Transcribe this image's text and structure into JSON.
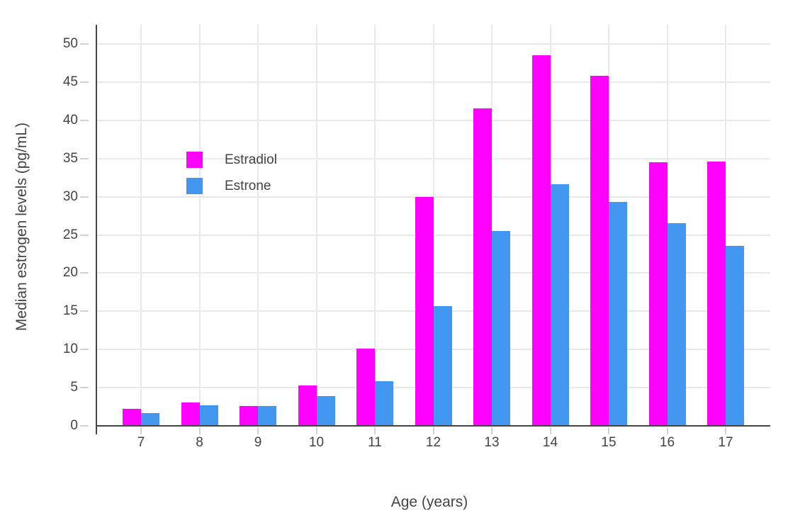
{
  "chart_data": {
    "type": "bar",
    "title": "",
    "xlabel": "Age (years)",
    "ylabel": "Median estrogen levels (pg/mL)",
    "categories": [
      "7",
      "8",
      "9",
      "10",
      "11",
      "12",
      "13",
      "14",
      "15",
      "16",
      "17"
    ],
    "series": [
      {
        "name": "Estradiol",
        "color": "#FF00FF",
        "values": [
          2.2,
          3.1,
          2.6,
          5.3,
          10.1,
          30.0,
          41.6,
          48.5,
          45.8,
          34.5,
          34.6
        ]
      },
      {
        "name": "Estrone",
        "color": "#4196F0",
        "values": [
          1.7,
          2.7,
          2.6,
          3.9,
          5.8,
          15.7,
          25.5,
          31.6,
          29.3,
          26.5,
          23.6
        ]
      }
    ],
    "ylim": [
      0,
      50
    ],
    "yticks": [
      0,
      5,
      10,
      15,
      20,
      25,
      30,
      35,
      40,
      45,
      50
    ],
    "grid": true,
    "legend_position": "inside-top-left",
    "colors": {
      "text": "#444444",
      "axis_line": "#444444",
      "gridline": "#E9E9E9",
      "tick": "#D2D2D2",
      "background": "#FFFFFF"
    }
  }
}
